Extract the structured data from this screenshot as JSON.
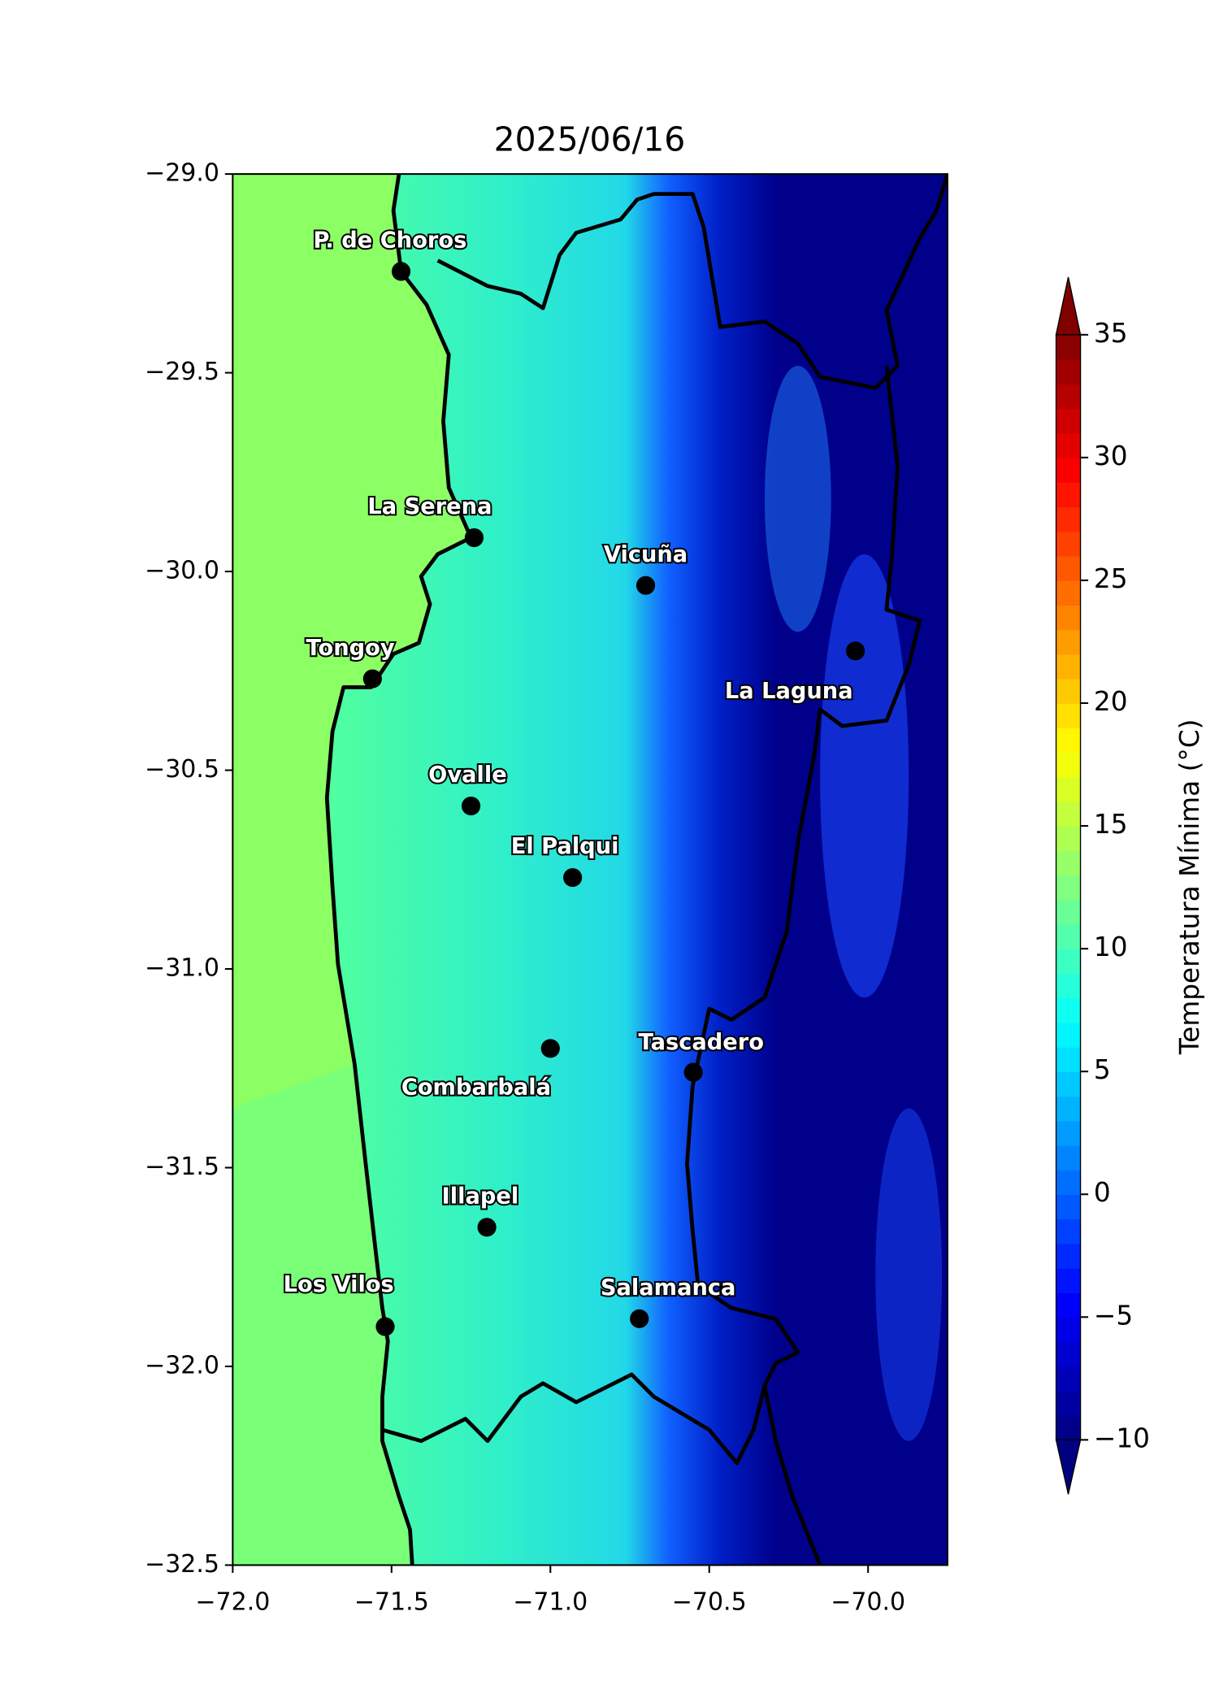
{
  "chart_data": {
    "type": "map",
    "title": "2025/06/16",
    "xlim": [
      -72,
      -69.75
    ],
    "ylim": [
      -32.5,
      -29
    ],
    "xticks": [
      {
        "value": -72,
        "label": "−72.0"
      },
      {
        "value": -71.5,
        "label": "−71.5"
      },
      {
        "value": -71,
        "label": "−71.0"
      },
      {
        "value": -70.5,
        "label": "−70.5"
      },
      {
        "value": -70,
        "label": "−70.0"
      }
    ],
    "yticks": [
      {
        "value": -29,
        "label": "−29.0"
      },
      {
        "value": -29.5,
        "label": "−29.5"
      },
      {
        "value": -30,
        "label": "−30.0"
      },
      {
        "value": -30.5,
        "label": "−30.5"
      },
      {
        "value": -31,
        "label": "−31.0"
      },
      {
        "value": -31.5,
        "label": "−31.5"
      },
      {
        "value": -32,
        "label": "−32.0"
      },
      {
        "value": -32.5,
        "label": "−32.5"
      }
    ],
    "marker_color": "#000000",
    "points": [
      {
        "name": "P. de Choros",
        "lon": -71.47,
        "lat": -29.245
      },
      {
        "name": "La Serena",
        "lon": -71.24,
        "lat": -29.915
      },
      {
        "name": "Vicuña",
        "lon": -70.7,
        "lat": -30.035
      },
      {
        "name": "La Laguna",
        "lon": -70.04,
        "lat": -30.2
      },
      {
        "name": "Tongoy",
        "lon": -71.56,
        "lat": -30.27
      },
      {
        "name": "Ovalle",
        "lon": -71.25,
        "lat": -30.59
      },
      {
        "name": "El Palqui",
        "lon": -70.93,
        "lat": -30.77
      },
      {
        "name": "Combarbalá",
        "lon": -71.0,
        "lat": -31.2
      },
      {
        "name": "Tascadero",
        "lon": -70.55,
        "lat": -31.26
      },
      {
        "name": "Illapel",
        "lon": -71.2,
        "lat": -31.65
      },
      {
        "name": "Los Vilos",
        "lon": -71.52,
        "lat": -31.9
      },
      {
        "name": "Salamanca",
        "lon": -70.72,
        "lat": -31.88
      }
    ],
    "colorbar": {
      "label": "Temperatura Mínima (°C)",
      "clim": [
        -10,
        35
      ],
      "extend": "both",
      "ticks": [
        {
          "value": -10,
          "label": "−10"
        },
        {
          "value": -5,
          "label": "−5"
        },
        0,
        5,
        10,
        15,
        20,
        25,
        30,
        35
      ]
    }
  }
}
